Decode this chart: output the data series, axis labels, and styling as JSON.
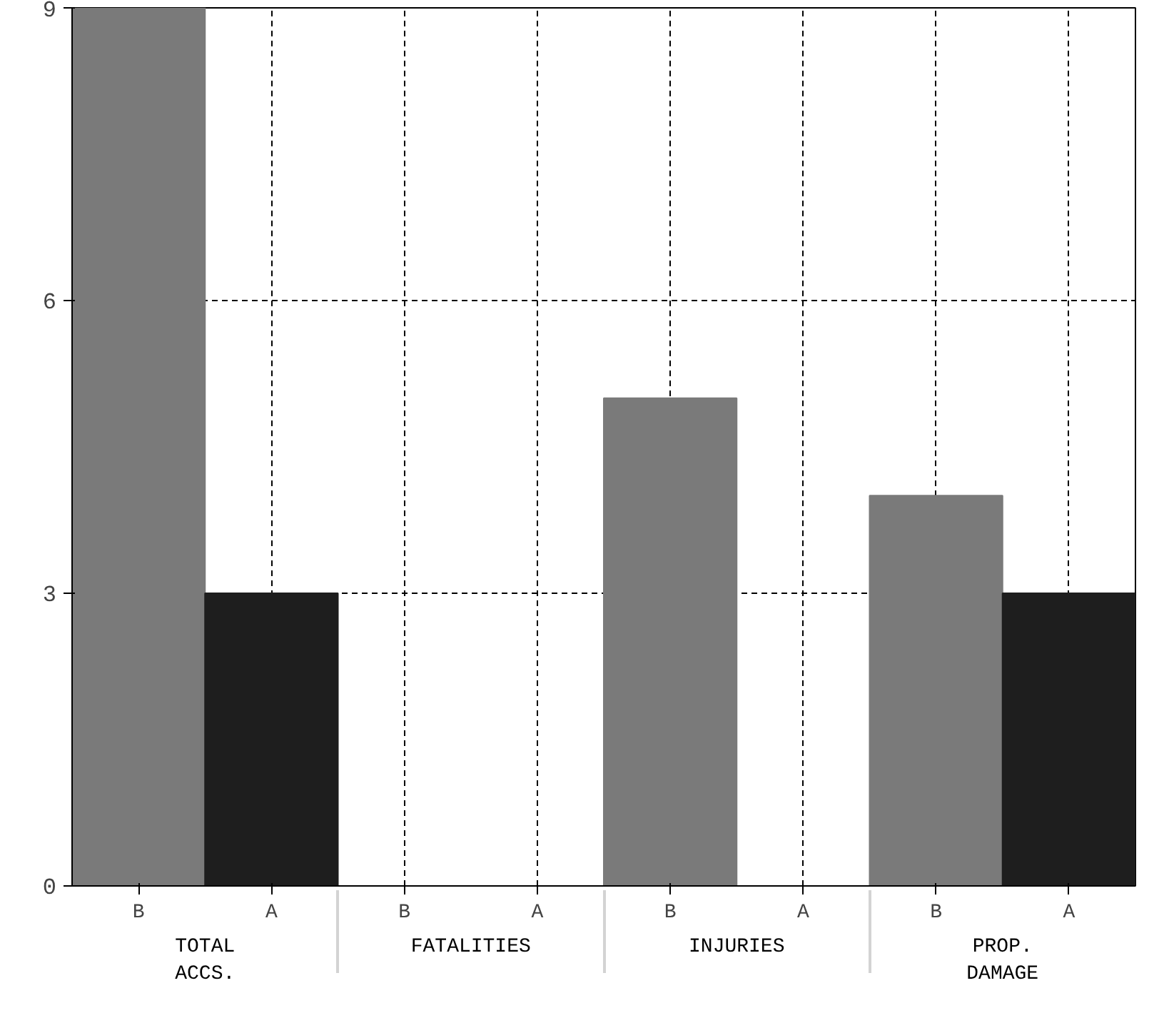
{
  "chart_data": {
    "type": "bar",
    "categories": [
      "TOTAL\nACCS.",
      "FATALITIES",
      "INJURIES",
      "PROP.\nDAMAGE"
    ],
    "series": [
      {
        "name": "B",
        "color": "#7a7a7a",
        "values": [
          9,
          0,
          5,
          4
        ]
      },
      {
        "name": "A",
        "color": "#1e1e1e",
        "values": [
          3,
          0,
          0,
          3
        ]
      }
    ],
    "ylim": [
      0,
      9
    ],
    "yticks": [
      0,
      3,
      6,
      9
    ],
    "grid": true,
    "line_style": "dashed"
  }
}
